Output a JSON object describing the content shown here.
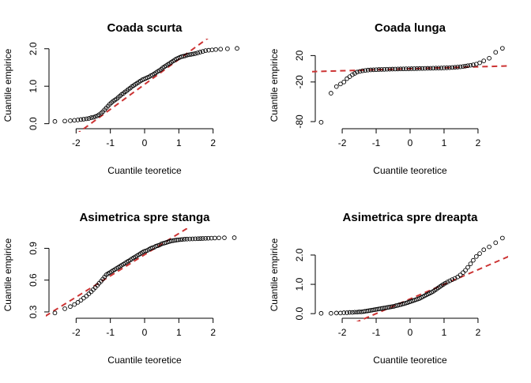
{
  "chart_data": [
    {
      "type": "scatter",
      "title": "Coada scurta",
      "xlabel": "Cuantile teoretice",
      "ylabel": "Cuantile empirice",
      "xlim": [
        -2.7,
        2.7
      ],
      "ylim": [
        -0.05,
        2.1
      ],
      "xticks": [
        -2,
        -1,
        0,
        1,
        2
      ],
      "yticks": [
        0.0,
        1.0,
        2.0
      ],
      "ytick_labels": [
        "0.0",
        "1.0",
        "2.0"
      ],
      "reference_line": {
        "slope": 0.667,
        "intercept": 1.05,
        "color": "#cc3333",
        "style": "dashed"
      },
      "points": [
        [
          -2.62,
          0.06
        ],
        [
          -2.33,
          0.07
        ],
        [
          -2.17,
          0.08
        ],
        [
          -2.05,
          0.09
        ],
        [
          -1.95,
          0.1
        ],
        [
          -1.86,
          0.11
        ],
        [
          -1.78,
          0.12
        ],
        [
          -1.7,
          0.13
        ],
        [
          -1.63,
          0.14
        ],
        [
          -1.56,
          0.16
        ],
        [
          -1.5,
          0.17
        ],
        [
          -1.44,
          0.19
        ],
        [
          -1.38,
          0.21
        ],
        [
          -1.33,
          0.24
        ],
        [
          -1.27,
          0.28
        ],
        [
          -1.22,
          0.32
        ],
        [
          -1.17,
          0.37
        ],
        [
          -1.12,
          0.42
        ],
        [
          -1.07,
          0.47
        ],
        [
          -1.02,
          0.52
        ],
        [
          -0.97,
          0.56
        ],
        [
          -0.92,
          0.6
        ],
        [
          -0.87,
          0.63
        ],
        [
          -0.82,
          0.66
        ],
        [
          -0.77,
          0.7
        ],
        [
          -0.72,
          0.74
        ],
        [
          -0.67,
          0.78
        ],
        [
          -0.62,
          0.81
        ],
        [
          -0.57,
          0.85
        ],
        [
          -0.52,
          0.88
        ],
        [
          -0.47,
          0.92
        ],
        [
          -0.42,
          0.95
        ],
        [
          -0.37,
          0.99
        ],
        [
          -0.32,
          1.02
        ],
        [
          -0.27,
          1.05
        ],
        [
          -0.22,
          1.08
        ],
        [
          -0.17,
          1.11
        ],
        [
          -0.12,
          1.14
        ],
        [
          -0.07,
          1.17
        ],
        [
          -0.02,
          1.19
        ],
        [
          0.03,
          1.21
        ],
        [
          0.08,
          1.23
        ],
        [
          0.13,
          1.25
        ],
        [
          0.18,
          1.28
        ],
        [
          0.23,
          1.3
        ],
        [
          0.28,
          1.33
        ],
        [
          0.33,
          1.36
        ],
        [
          0.38,
          1.39
        ],
        [
          0.43,
          1.42
        ],
        [
          0.48,
          1.45
        ],
        [
          0.53,
          1.49
        ],
        [
          0.58,
          1.52
        ],
        [
          0.63,
          1.55
        ],
        [
          0.68,
          1.58
        ],
        [
          0.73,
          1.61
        ],
        [
          0.78,
          1.64
        ],
        [
          0.83,
          1.67
        ],
        [
          0.88,
          1.7
        ],
        [
          0.93,
          1.73
        ],
        [
          0.98,
          1.75
        ],
        [
          1.03,
          1.77
        ],
        [
          1.08,
          1.79
        ],
        [
          1.13,
          1.8
        ],
        [
          1.18,
          1.81
        ],
        [
          1.24,
          1.83
        ],
        [
          1.3,
          1.84
        ],
        [
          1.36,
          1.85
        ],
        [
          1.42,
          1.86
        ],
        [
          1.48,
          1.87
        ],
        [
          1.55,
          1.89
        ],
        [
          1.62,
          1.91
        ],
        [
          1.7,
          1.93
        ],
        [
          1.78,
          1.95
        ],
        [
          1.87,
          1.96
        ],
        [
          1.97,
          1.97
        ],
        [
          2.08,
          1.98
        ],
        [
          2.22,
          1.99
        ],
        [
          2.42,
          2.0
        ],
        [
          2.7,
          2.01
        ]
      ]
    },
    {
      "type": "scatter",
      "title": "Coada lunga",
      "xlabel": "Cuantile teoretice",
      "ylabel": "Cuantile empirice",
      "xlim": [
        -2.7,
        2.7
      ],
      "ylim": [
        -86,
        36
      ],
      "xticks": [
        -2,
        -1,
        0,
        1,
        2
      ],
      "yticks": [
        -80,
        -20,
        20
      ],
      "ytick_labels": [
        "-80",
        "-20",
        "20"
      ],
      "reference_line": {
        "slope": 1.5,
        "intercept": 0,
        "color": "#cc3333",
        "style": "dashed"
      },
      "points": [
        [
          -2.62,
          -81
        ],
        [
          -2.33,
          -37
        ],
        [
          -2.17,
          -27
        ],
        [
          -2.05,
          -23
        ],
        [
          -1.95,
          -20
        ],
        [
          -1.86,
          -15
        ],
        [
          -1.78,
          -12
        ],
        [
          -1.7,
          -9
        ],
        [
          -1.63,
          -7
        ],
        [
          -1.56,
          -5
        ],
        [
          -1.48,
          -4
        ],
        [
          -1.4,
          -3
        ],
        [
          -1.32,
          -2.5
        ],
        [
          -1.24,
          -2
        ],
        [
          -1.16,
          -1.7
        ],
        [
          -1.08,
          -1.5
        ],
        [
          -1.0,
          -1.3
        ],
        [
          -0.92,
          -1.1
        ],
        [
          -0.84,
          -1
        ],
        [
          -0.76,
          -0.9
        ],
        [
          -0.68,
          -0.7
        ],
        [
          -0.6,
          -0.6
        ],
        [
          -0.52,
          -0.5
        ],
        [
          -0.44,
          -0.4
        ],
        [
          -0.36,
          -0.3
        ],
        [
          -0.28,
          -0.2
        ],
        [
          -0.2,
          -0.1
        ],
        [
          -0.12,
          0
        ],
        [
          -0.04,
          0
        ],
        [
          0.04,
          0.1
        ],
        [
          0.12,
          0.2
        ],
        [
          0.2,
          0.3
        ],
        [
          0.28,
          0.4
        ],
        [
          0.36,
          0.5
        ],
        [
          0.44,
          0.6
        ],
        [
          0.52,
          0.7
        ],
        [
          0.6,
          0.8
        ],
        [
          0.68,
          0.9
        ],
        [
          0.76,
          1
        ],
        [
          0.84,
          1.1
        ],
        [
          0.92,
          1.2
        ],
        [
          1.0,
          1.3
        ],
        [
          1.08,
          1.5
        ],
        [
          1.16,
          1.7
        ],
        [
          1.24,
          2
        ],
        [
          1.32,
          2.3
        ],
        [
          1.4,
          2.6
        ],
        [
          1.48,
          3
        ],
        [
          1.56,
          3.4
        ],
        [
          1.63,
          4
        ],
        [
          1.7,
          4.6
        ],
        [
          1.78,
          5.3
        ],
        [
          1.86,
          6
        ],
        [
          1.95,
          7
        ],
        [
          2.05,
          9
        ],
        [
          2.17,
          12
        ],
        [
          2.33,
          16
        ],
        [
          2.52,
          25
        ],
        [
          2.72,
          31
        ]
      ]
    },
    {
      "type": "scatter",
      "title": "Asimetrica spre stanga",
      "xlabel": "Cuantile teoretice",
      "ylabel": "Cuantile empirice",
      "xlim": [
        -2.7,
        2.7
      ],
      "ylim": [
        0.27,
        1.03
      ],
      "xticks": [
        -2,
        -1,
        0,
        1,
        2
      ],
      "yticks": [
        0.3,
        0.6,
        0.9
      ],
      "ytick_labels": [
        "0.3",
        "0.6",
        "0.9"
      ],
      "reference_line": {
        "slope": 0.2,
        "intercept": 0.84,
        "color": "#cc3333",
        "style": "dashed"
      },
      "points": [
        [
          -2.62,
          0.29
        ],
        [
          -2.33,
          0.33
        ],
        [
          -2.17,
          0.35
        ],
        [
          -2.05,
          0.37
        ],
        [
          -1.95,
          0.39
        ],
        [
          -1.86,
          0.41
        ],
        [
          -1.78,
          0.43
        ],
        [
          -1.7,
          0.45
        ],
        [
          -1.63,
          0.47
        ],
        [
          -1.56,
          0.49
        ],
        [
          -1.5,
          0.51
        ],
        [
          -1.44,
          0.53
        ],
        [
          -1.38,
          0.55
        ],
        [
          -1.33,
          0.57
        ],
        [
          -1.27,
          0.59
        ],
        [
          -1.22,
          0.61
        ],
        [
          -1.17,
          0.63
        ],
        [
          -1.12,
          0.65
        ],
        [
          -1.07,
          0.66
        ],
        [
          -1.02,
          0.67
        ],
        [
          -0.97,
          0.68
        ],
        [
          -0.92,
          0.69
        ],
        [
          -0.87,
          0.7
        ],
        [
          -0.82,
          0.71
        ],
        [
          -0.77,
          0.72
        ],
        [
          -0.72,
          0.73
        ],
        [
          -0.67,
          0.74
        ],
        [
          -0.62,
          0.75
        ],
        [
          -0.57,
          0.76
        ],
        [
          -0.52,
          0.77
        ],
        [
          -0.47,
          0.78
        ],
        [
          -0.42,
          0.79
        ],
        [
          -0.37,
          0.8
        ],
        [
          -0.32,
          0.81
        ],
        [
          -0.27,
          0.82
        ],
        [
          -0.22,
          0.83
        ],
        [
          -0.17,
          0.84
        ],
        [
          -0.12,
          0.85
        ],
        [
          -0.07,
          0.86
        ],
        [
          -0.02,
          0.87
        ],
        [
          0.03,
          0.875
        ],
        [
          0.08,
          0.88
        ],
        [
          0.13,
          0.89
        ],
        [
          0.18,
          0.9
        ],
        [
          0.23,
          0.905
        ],
        [
          0.28,
          0.91
        ],
        [
          0.33,
          0.92
        ],
        [
          0.38,
          0.925
        ],
        [
          0.43,
          0.93
        ],
        [
          0.48,
          0.94
        ],
        [
          0.53,
          0.945
        ],
        [
          0.58,
          0.95
        ],
        [
          0.63,
          0.955
        ],
        [
          0.68,
          0.96
        ],
        [
          0.73,
          0.965
        ],
        [
          0.78,
          0.97
        ],
        [
          0.83,
          0.972
        ],
        [
          0.88,
          0.975
        ],
        [
          0.93,
          0.978
        ],
        [
          0.98,
          0.98
        ],
        [
          1.04,
          0.982
        ],
        [
          1.1,
          0.984
        ],
        [
          1.17,
          0.986
        ],
        [
          1.24,
          0.987
        ],
        [
          1.32,
          0.988
        ],
        [
          1.4,
          0.989
        ],
        [
          1.48,
          0.99
        ],
        [
          1.56,
          0.991
        ],
        [
          1.63,
          0.992
        ],
        [
          1.7,
          0.993
        ],
        [
          1.78,
          0.994
        ],
        [
          1.86,
          0.995
        ],
        [
          1.95,
          0.996
        ],
        [
          2.05,
          0.997
        ],
        [
          2.17,
          0.998
        ],
        [
          2.33,
          0.999
        ],
        [
          2.62,
          1.0
        ]
      ]
    },
    {
      "type": "scatter",
      "title": "Asimetrica spre dreapta",
      "xlabel": "Cuantile teoretice",
      "ylabel": "Cuantile empirice",
      "xlim": [
        -2.7,
        2.7
      ],
      "ylim": [
        -0.05,
        2.7
      ],
      "xticks": [
        -2,
        -1,
        0,
        1,
        2
      ],
      "yticks": [
        0.0,
        1.0,
        2.0
      ],
      "ytick_labels": [
        "0.0",
        "1.0",
        "2.0"
      ],
      "reference_line": {
        "slope": 0.5,
        "intercept": 0.5,
        "color": "#cc3333",
        "style": "dashed"
      },
      "points": [
        [
          -2.62,
          0.01
        ],
        [
          -2.33,
          0.01
        ],
        [
          -2.17,
          0.02
        ],
        [
          -2.05,
          0.02
        ],
        [
          -1.95,
          0.03
        ],
        [
          -1.86,
          0.03
        ],
        [
          -1.78,
          0.04
        ],
        [
          -1.7,
          0.04
        ],
        [
          -1.63,
          0.05
        ],
        [
          -1.56,
          0.05
        ],
        [
          -1.5,
          0.06
        ],
        [
          -1.44,
          0.06
        ],
        [
          -1.38,
          0.07
        ],
        [
          -1.33,
          0.08
        ],
        [
          -1.27,
          0.09
        ],
        [
          -1.22,
          0.1
        ],
        [
          -1.17,
          0.11
        ],
        [
          -1.12,
          0.12
        ],
        [
          -1.07,
          0.13
        ],
        [
          -1.02,
          0.14
        ],
        [
          -0.97,
          0.15
        ],
        [
          -0.92,
          0.16
        ],
        [
          -0.87,
          0.17
        ],
        [
          -0.82,
          0.18
        ],
        [
          -0.77,
          0.19
        ],
        [
          -0.72,
          0.2
        ],
        [
          -0.67,
          0.21
        ],
        [
          -0.62,
          0.22
        ],
        [
          -0.57,
          0.23
        ],
        [
          -0.52,
          0.24
        ],
        [
          -0.47,
          0.25
        ],
        [
          -0.42,
          0.27
        ],
        [
          -0.37,
          0.28
        ],
        [
          -0.32,
          0.3
        ],
        [
          -0.27,
          0.31
        ],
        [
          -0.22,
          0.33
        ],
        [
          -0.17,
          0.34
        ],
        [
          -0.12,
          0.36
        ],
        [
          -0.07,
          0.38
        ],
        [
          -0.02,
          0.4
        ],
        [
          0.03,
          0.42
        ],
        [
          0.08,
          0.44
        ],
        [
          0.13,
          0.46
        ],
        [
          0.18,
          0.48
        ],
        [
          0.23,
          0.5
        ],
        [
          0.28,
          0.52
        ],
        [
          0.33,
          0.55
        ],
        [
          0.38,
          0.58
        ],
        [
          0.43,
          0.61
        ],
        [
          0.48,
          0.64
        ],
        [
          0.53,
          0.67
        ],
        [
          0.58,
          0.7
        ],
        [
          0.63,
          0.73
        ],
        [
          0.68,
          0.76
        ],
        [
          0.73,
          0.8
        ],
        [
          0.78,
          0.84
        ],
        [
          0.83,
          0.88
        ],
        [
          0.88,
          0.92
        ],
        [
          0.93,
          0.96
        ],
        [
          0.98,
          1.0
        ],
        [
          1.04,
          1.04
        ],
        [
          1.1,
          1.08
        ],
        [
          1.17,
          1.12
        ],
        [
          1.24,
          1.16
        ],
        [
          1.32,
          1.2
        ],
        [
          1.4,
          1.25
        ],
        [
          1.48,
          1.32
        ],
        [
          1.56,
          1.4
        ],
        [
          1.63,
          1.48
        ],
        [
          1.7,
          1.58
        ],
        [
          1.78,
          1.7
        ],
        [
          1.86,
          1.82
        ],
        [
          1.95,
          1.95
        ],
        [
          2.05,
          2.05
        ],
        [
          2.17,
          2.18
        ],
        [
          2.33,
          2.28
        ],
        [
          2.52,
          2.42
        ],
        [
          2.72,
          2.58
        ]
      ]
    }
  ]
}
